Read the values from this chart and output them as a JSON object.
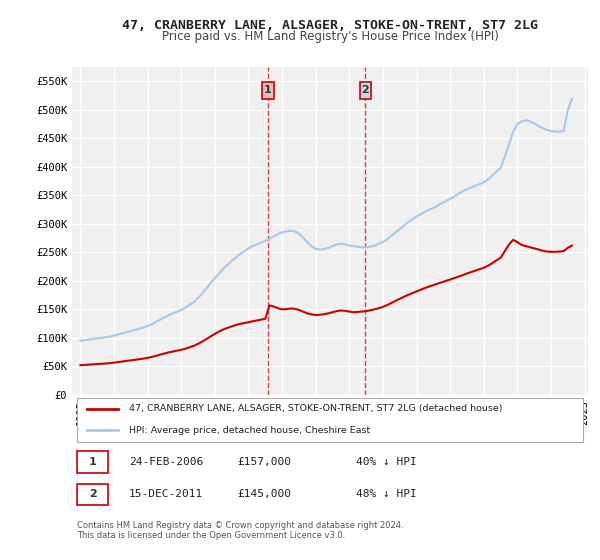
{
  "title": "47, CRANBERRY LANE, ALSAGER, STOKE-ON-TRENT, ST7 2LG",
  "subtitle": "Price paid vs. HM Land Registry's House Price Index (HPI)",
  "ylabel": "",
  "xlabel": "",
  "ylim": [
    0,
    575000
  ],
  "yticks": [
    0,
    50000,
    100000,
    150000,
    200000,
    250000,
    300000,
    350000,
    400000,
    450000,
    500000,
    550000
  ],
  "ytick_labels": [
    "£0",
    "£50K",
    "£100K",
    "£150K",
    "£200K",
    "£250K",
    "£300K",
    "£350K",
    "£400K",
    "£450K",
    "£500K",
    "£550K"
  ],
  "background_color": "#ffffff",
  "plot_background_color": "#f0f0f0",
  "grid_color": "#ffffff",
  "hpi_color": "#aac8e8",
  "price_color": "#cc0000",
  "transaction1_date": 2006.15,
  "transaction1_price": 157000,
  "transaction1_label": "1",
  "transaction2_date": 2011.96,
  "transaction2_price": 145000,
  "transaction2_label": "2",
  "legend_line1": "47, CRANBERRY LANE, ALSAGER, STOKE-ON-TRENT, ST7 2LG (detached house)",
  "legend_line2": "HPI: Average price, detached house, Cheshire East",
  "table_row1": [
    "1",
    "24-FEB-2006",
    "£157,000",
    "40% ↓ HPI"
  ],
  "table_row2": [
    "2",
    "15-DEC-2011",
    "£145,000",
    "48% ↓ HPI"
  ],
  "footnote": "Contains HM Land Registry data © Crown copyright and database right 2024.\nThis data is licensed under the Open Government Licence v3.0.",
  "hpi_x": [
    1995,
    1995.25,
    1995.5,
    1995.75,
    1996,
    1996.25,
    1996.5,
    1996.75,
    1997,
    1997.25,
    1997.5,
    1997.75,
    1998,
    1998.25,
    1998.5,
    1998.75,
    1999,
    1999.25,
    1999.5,
    1999.75,
    2000,
    2000.25,
    2000.5,
    2000.75,
    2001,
    2001.25,
    2001.5,
    2001.75,
    2002,
    2002.25,
    2002.5,
    2002.75,
    2003,
    2003.25,
    2003.5,
    2003.75,
    2004,
    2004.25,
    2004.5,
    2004.75,
    2005,
    2005.25,
    2005.5,
    2005.75,
    2006,
    2006.25,
    2006.5,
    2006.75,
    2007,
    2007.25,
    2007.5,
    2007.75,
    2008,
    2008.25,
    2008.5,
    2008.75,
    2009,
    2009.25,
    2009.5,
    2009.75,
    2010,
    2010.25,
    2010.5,
    2010.75,
    2011,
    2011.25,
    2011.5,
    2011.75,
    2012,
    2012.25,
    2012.5,
    2012.75,
    2013,
    2013.25,
    2013.5,
    2013.75,
    2014,
    2014.25,
    2014.5,
    2014.75,
    2015,
    2015.25,
    2015.5,
    2015.75,
    2016,
    2016.25,
    2016.5,
    2016.75,
    2017,
    2017.25,
    2017.5,
    2017.75,
    2018,
    2018.25,
    2018.5,
    2018.75,
    2019,
    2019.25,
    2019.5,
    2019.75,
    2020,
    2020.25,
    2020.5,
    2020.75,
    2021,
    2021.25,
    2021.5,
    2021.75,
    2022,
    2022.25,
    2022.5,
    2022.75,
    2023,
    2023.25,
    2023.5,
    2023.75,
    2024,
    2024.25
  ],
  "hpi_y": [
    95000,
    96000,
    97000,
    98000,
    99000,
    100000,
    101000,
    102000,
    104000,
    106000,
    108000,
    110000,
    112000,
    114000,
    116000,
    118000,
    121000,
    124000,
    128000,
    132000,
    136000,
    140000,
    143000,
    146000,
    149000,
    153000,
    158000,
    163000,
    170000,
    178000,
    187000,
    196000,
    205000,
    213000,
    221000,
    228000,
    235000,
    241000,
    247000,
    252000,
    257000,
    261000,
    264000,
    267000,
    270000,
    274000,
    278000,
    282000,
    285000,
    287000,
    288000,
    287000,
    283000,
    276000,
    268000,
    261000,
    256000,
    255000,
    256000,
    258000,
    261000,
    264000,
    265000,
    264000,
    262000,
    261000,
    260000,
    259000,
    259000,
    260000,
    262000,
    265000,
    268000,
    273000,
    279000,
    285000,
    291000,
    297000,
    303000,
    308000,
    313000,
    317000,
    321000,
    325000,
    328000,
    332000,
    336000,
    340000,
    344000,
    348000,
    353000,
    357000,
    361000,
    364000,
    367000,
    370000,
    373000,
    378000,
    385000,
    392000,
    398000,
    418000,
    440000,
    462000,
    475000,
    480000,
    482000,
    480000,
    476000,
    472000,
    468000,
    465000,
    463000,
    462000,
    462000,
    463000,
    500000,
    520000
  ],
  "price_x": [
    1995,
    1995.25,
    1995.5,
    1995.75,
    1996,
    1996.25,
    1996.5,
    1996.75,
    1997,
    1997.25,
    1997.5,
    1997.75,
    1998,
    1998.25,
    1998.5,
    1998.75,
    1999,
    1999.25,
    1999.5,
    1999.75,
    2000,
    2000.25,
    2000.5,
    2000.75,
    2001,
    2001.25,
    2001.5,
    2001.75,
    2002,
    2002.25,
    2002.5,
    2002.75,
    2003,
    2003.25,
    2003.5,
    2003.75,
    2004,
    2004.25,
    2004.5,
    2004.75,
    2005,
    2005.25,
    2005.5,
    2005.75,
    2006,
    2006.25,
    2006.5,
    2006.75,
    2007,
    2007.25,
    2007.5,
    2007.75,
    2008,
    2008.25,
    2008.5,
    2008.75,
    2009,
    2009.25,
    2009.5,
    2009.75,
    2010,
    2010.25,
    2010.5,
    2010.75,
    2011,
    2011.25,
    2011.5,
    2011.75,
    2012,
    2012.25,
    2012.5,
    2012.75,
    2013,
    2013.25,
    2013.5,
    2013.75,
    2014,
    2014.25,
    2014.5,
    2014.75,
    2015,
    2015.25,
    2015.5,
    2015.75,
    2016,
    2016.25,
    2016.5,
    2016.75,
    2017,
    2017.25,
    2017.5,
    2017.75,
    2018,
    2018.25,
    2018.5,
    2018.75,
    2019,
    2019.25,
    2019.5,
    2019.75,
    2020,
    2020.25,
    2020.5,
    2020.75,
    2021,
    2021.25,
    2021.5,
    2021.75,
    2022,
    2022.25,
    2022.5,
    2022.75,
    2023,
    2023.25,
    2023.5,
    2023.75,
    2024,
    2024.25
  ],
  "price_y": [
    52000,
    52500,
    53000,
    53500,
    54000,
    54500,
    55000,
    55500,
    56500,
    57500,
    58500,
    59500,
    60500,
    61500,
    62500,
    63500,
    65000,
    66500,
    68500,
    70500,
    72500,
    74500,
    76000,
    77500,
    79000,
    81000,
    83500,
    86000,
    89500,
    93500,
    98000,
    102500,
    107000,
    111000,
    114500,
    117500,
    120000,
    122500,
    124500,
    126000,
    127500,
    129000,
    130500,
    132000,
    133500,
    157000,
    155000,
    152000,
    150000,
    150500,
    151500,
    151000,
    149000,
    146000,
    143000,
    141000,
    140000,
    140500,
    141500,
    143000,
    145000,
    147000,
    148000,
    147500,
    146000,
    145000,
    145500,
    146000,
    147000,
    148500,
    150000,
    152000,
    154500,
    157500,
    161000,
    165000,
    168500,
    172000,
    175500,
    178500,
    181500,
    184500,
    187500,
    190000,
    192500,
    195000,
    197500,
    200000,
    202500,
    205000,
    207500,
    210000,
    213000,
    215500,
    218000,
    220500,
    223000,
    226500,
    231000,
    236000,
    240500,
    252000,
    264000,
    272000,
    268000,
    263000,
    261000,
    259000,
    257000,
    255000,
    253000,
    251500,
    251000,
    251000,
    251500,
    252000,
    258000,
    262000
  ],
  "xtick_years": [
    1995,
    1997,
    1999,
    2001,
    2003,
    2005,
    2007,
    2009,
    2011,
    2013,
    2015,
    2017,
    2019,
    2021,
    2023,
    2025
  ]
}
